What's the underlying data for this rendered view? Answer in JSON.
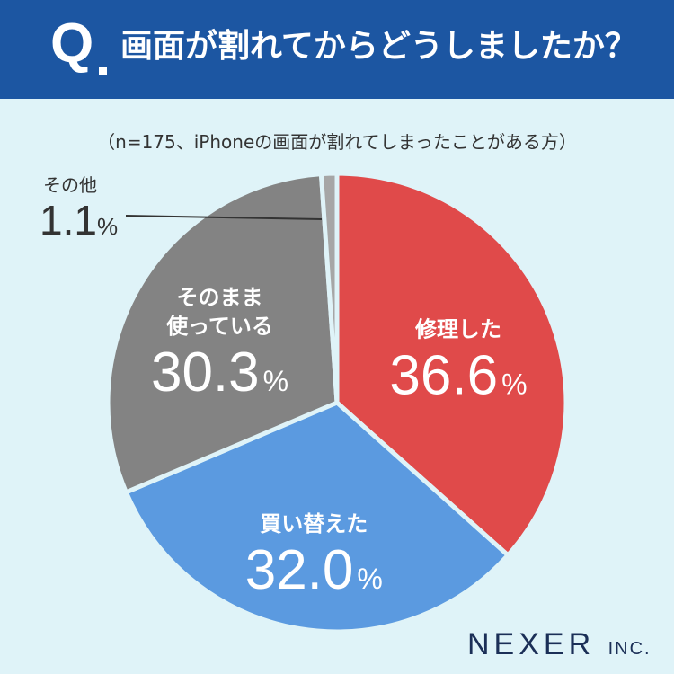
{
  "header": {
    "q_mark": "Q",
    "question": "画面が割れてからどうしましたか？"
  },
  "subtitle": "（n=175、iPhoneの画面が割れてしまったことがある方）",
  "chart_data": {
    "type": "pie",
    "title": "画面が割れてからどうしましたか？",
    "subtitle": "（n=175、iPhoneの画面が割れてしまったことがある方）",
    "unit": "%",
    "slices": [
      {
        "label": "修理した",
        "lines": [
          "修理した"
        ],
        "value": 36.6,
        "value_text": "36.6",
        "color": "#e04a4a"
      },
      {
        "label": "買い替えた",
        "lines": [
          "買い替えた"
        ],
        "value": 32.0,
        "value_text": "32.0",
        "color": "#5b9ae0"
      },
      {
        "label": "そのまま使っている",
        "lines": [
          "そのまま",
          "使っている"
        ],
        "value": 30.3,
        "value_text": "30.3",
        "color": "#838383"
      },
      {
        "label": "その他",
        "lines": [
          "その他"
        ],
        "value": 1.1,
        "value_text": "1.1",
        "color": "#a6a6a6"
      }
    ]
  },
  "brand": {
    "name": "NEXER",
    "suffix": "INC."
  }
}
